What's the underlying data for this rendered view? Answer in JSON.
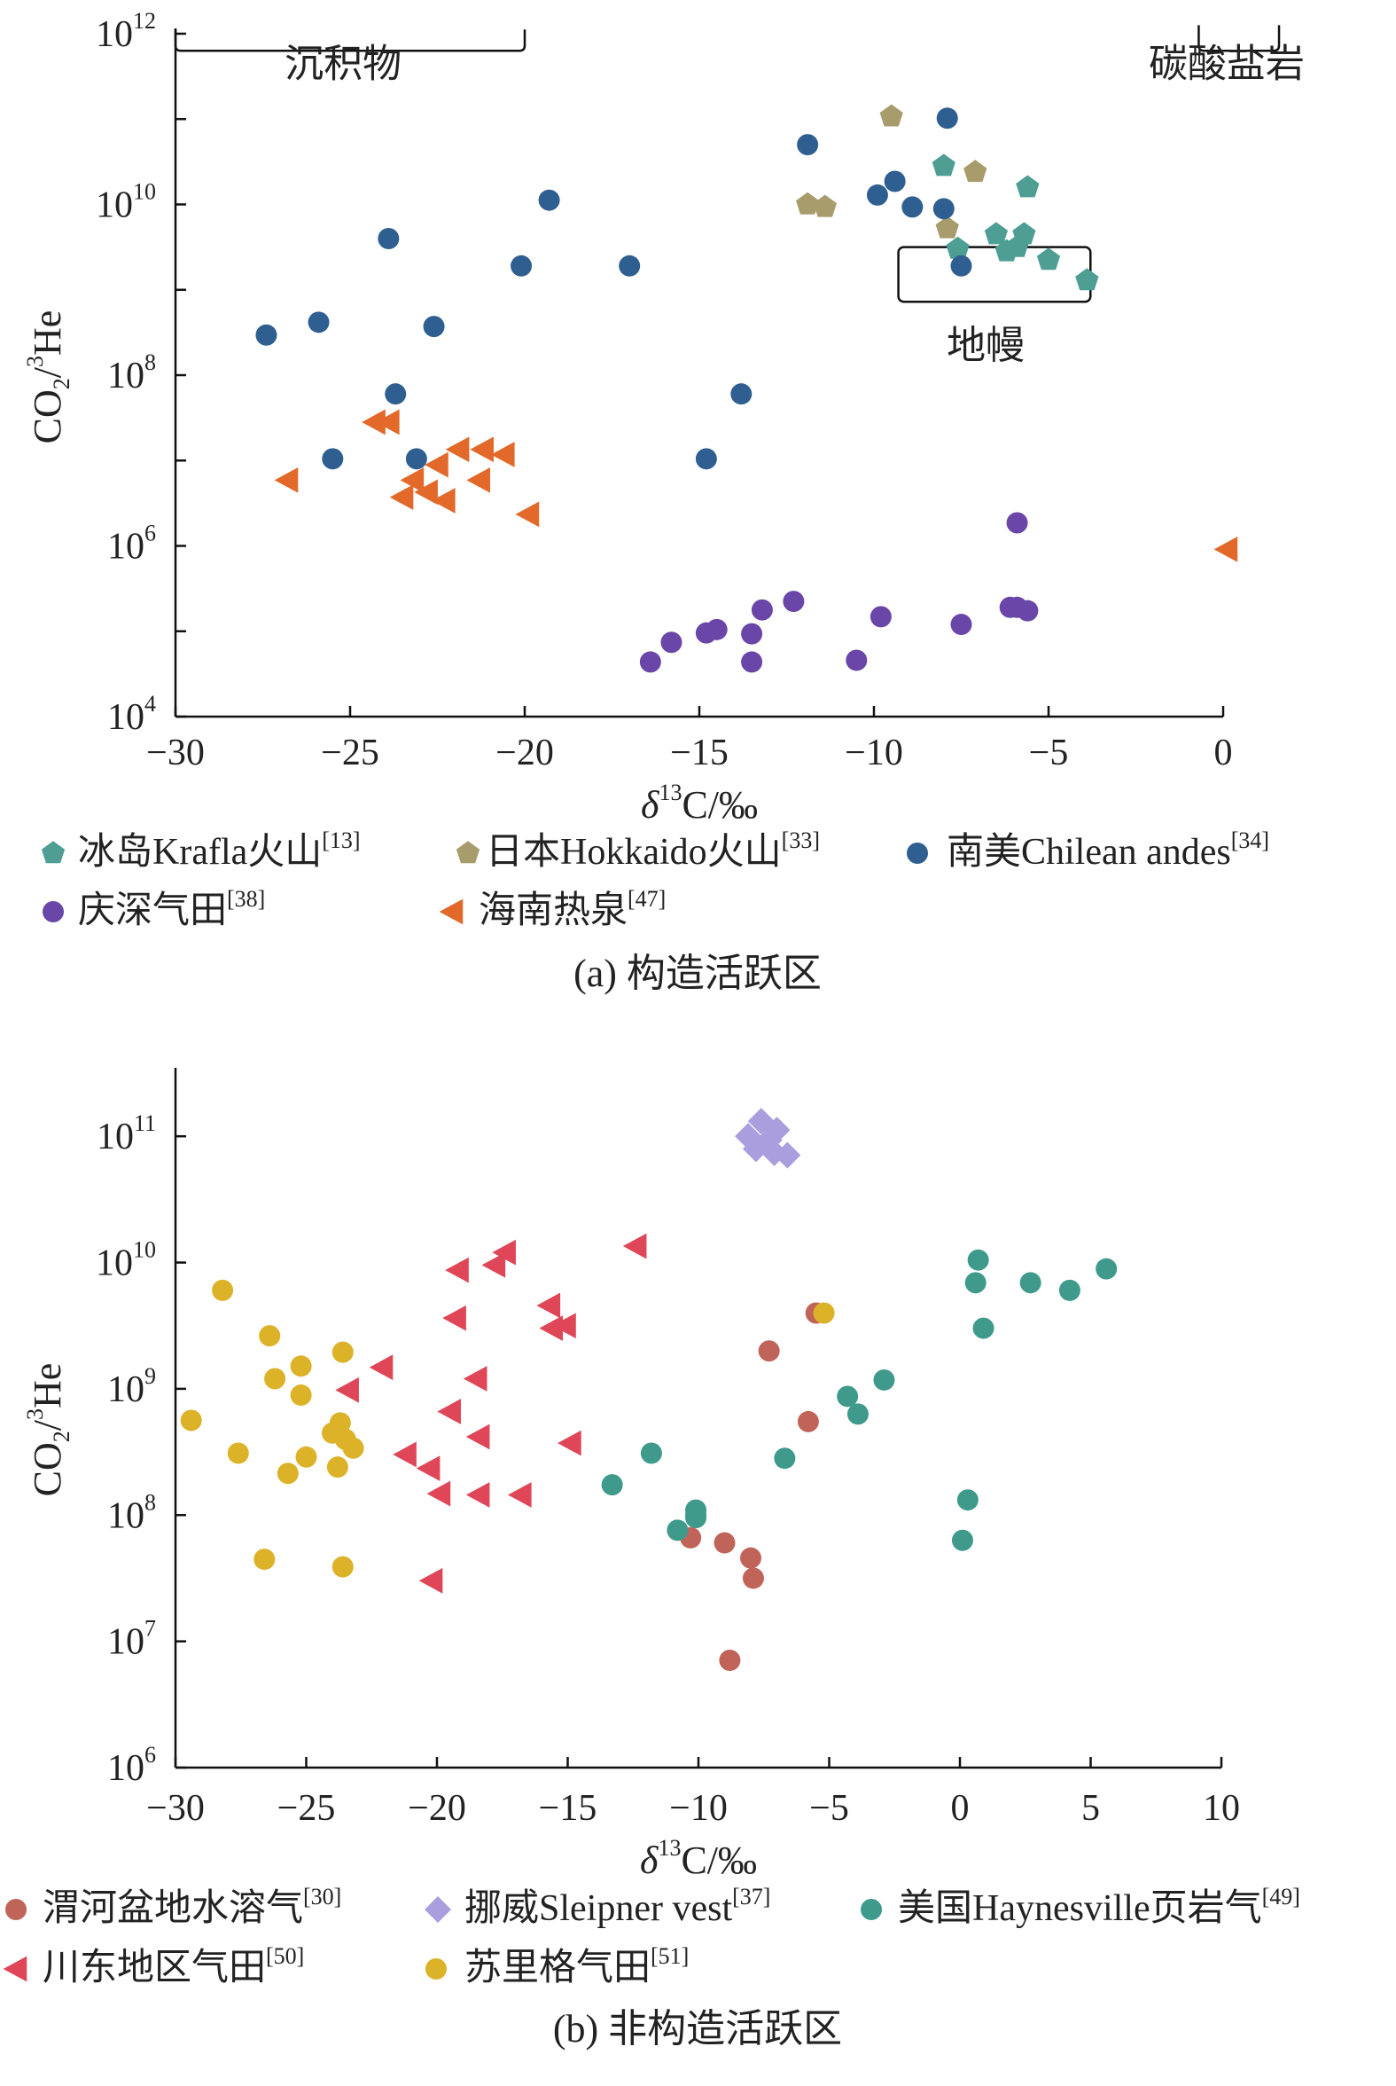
{
  "chart_data": [
    {
      "id": "panel_a",
      "type": "scatter",
      "caption": "(a) 构造活跃区",
      "xlabel_sym": "δ",
      "xlabel_sup": "13",
      "xlabel_rest": "C/‰",
      "ylabel_main": "CO",
      "ylabel_sub": "2",
      "ylabel_slash": "/",
      "ylabel_sup": "3",
      "ylabel_rest": "He",
      "xlim": [
        -30,
        0
      ],
      "ylim_exp": [
        4,
        12
      ],
      "x_ticks": [
        {
          "v": -30,
          "label": "−30"
        },
        {
          "v": -25,
          "label": "−25"
        },
        {
          "v": -20,
          "label": "−20"
        },
        {
          "v": -15,
          "label": "−15"
        },
        {
          "v": -10,
          "label": "−10"
        },
        {
          "v": -5,
          "label": "−5"
        },
        {
          "v": 0,
          "label": "0"
        }
      ],
      "y_ticks": [
        {
          "exp": 4,
          "base": "10",
          "sup": "4"
        },
        {
          "exp": 6,
          "base": "10",
          "sup": "6"
        },
        {
          "exp": 8,
          "base": "10",
          "sup": "8"
        },
        {
          "exp": 10,
          "base": "10",
          "sup": "10"
        },
        {
          "exp": 12,
          "base": "10",
          "sup": "12"
        }
      ],
      "regions": [
        {
          "label": "沉积物",
          "x": [
            -30,
            -20
          ],
          "y_exp": [
            11.8,
            12.05
          ],
          "shape": "open-top-box",
          "label_x": -25.2,
          "label_y_exp": 11.6
        },
        {
          "label": "碳酸盐岩",
          "x": [
            -0.7,
            1.6
          ],
          "y_exp": [
            11.8,
            12.1
          ],
          "shape": "open-top-box",
          "label_x": 0.1,
          "label_y_exp": 11.6
        },
        {
          "label": "地幔",
          "x": [
            -9.3,
            -3.8
          ],
          "y_exp": [
            8.86,
            9.5
          ],
          "shape": "rounded-box",
          "label_x": -6.8,
          "label_y_exp": 8.3
        }
      ],
      "series": [
        {
          "name": "冰岛Krafla火山",
          "ref": "[13]",
          "marker": "pentagon",
          "color": "#4e9e93",
          "x": [
            -8.0,
            -5.6,
            -6.5,
            -5.7,
            -7.6,
            -6.2,
            -5.9,
            -5.0,
            -3.9
          ],
          "y_exp": [
            10.45,
            10.2,
            9.65,
            9.65,
            9.48,
            9.45,
            9.5,
            9.35,
            9.11
          ]
        },
        {
          "name": "日本Hokkaido火山",
          "ref": "[33]",
          "marker": "pentagon",
          "color": "#a89c6d",
          "x": [
            -9.5,
            -7.1,
            -11.9,
            -11.4,
            -7.9
          ],
          "y_exp": [
            11.03,
            10.38,
            10.0,
            9.97,
            9.72
          ]
        },
        {
          "name": "南美Chilean andes",
          "ref": "[34]",
          "marker": "circle",
          "color": "#2f5f91",
          "x": [
            -11.9,
            -7.9,
            -9.4,
            -9.9,
            -8.9,
            -8.0,
            -7.5,
            -19.3,
            -23.9,
            -20.1,
            -17.0,
            -25.9,
            -27.4,
            -22.6,
            -23.7,
            -13.8,
            -25.5,
            -23.1,
            -14.8
          ],
          "y_exp": [
            10.7,
            11.01,
            10.27,
            10.11,
            9.97,
            9.95,
            9.28,
            10.05,
            9.6,
            9.28,
            9.28,
            8.62,
            8.47,
            8.57,
            7.78,
            7.78,
            7.02,
            7.02,
            7.02
          ]
        },
        {
          "name": "庆深气田",
          "ref": "[38]",
          "marker": "circle",
          "color": "#6a46a8",
          "x": [
            -5.9,
            -12.3,
            -9.8,
            -13.2,
            -6.1,
            -5.9,
            -5.6,
            -7.5,
            -13.5,
            -14.5,
            -14.8,
            -15.8,
            -16.4,
            -13.5,
            -10.5
          ],
          "y_exp": [
            6.27,
            5.35,
            5.17,
            5.25,
            5.28,
            5.28,
            5.24,
            5.08,
            4.97,
            5.02,
            4.98,
            4.87,
            4.64,
            4.64,
            4.66
          ]
        },
        {
          "name": "海南热泉",
          "ref": "[47]",
          "marker": "triangle-left",
          "color": "#e2692a",
          "x": [
            -24.3,
            -23.9,
            -21.9,
            -21.2,
            -20.6,
            -22.5,
            -23.2,
            -26.8,
            -21.3,
            -22.8,
            -23.5,
            -22.3,
            -19.9,
            0.1
          ],
          "y_exp": [
            7.45,
            7.45,
            7.13,
            7.13,
            7.07,
            6.95,
            6.77,
            6.77,
            6.77,
            6.63,
            6.57,
            6.53,
            6.37,
            5.96
          ]
        }
      ]
    },
    {
      "id": "panel_b",
      "type": "scatter",
      "caption": "(b) 非构造活跃区",
      "xlabel_sym": "δ",
      "xlabel_sup": "13",
      "xlabel_rest": "C/‰",
      "ylabel_main": "CO",
      "ylabel_sub": "2",
      "ylabel_slash": "/",
      "ylabel_sup": "3",
      "ylabel_rest": "He",
      "xlim": [
        -30,
        10
      ],
      "ylim_exp": [
        6,
        11.5
      ],
      "x_ticks": [
        {
          "v": -30,
          "label": "−30"
        },
        {
          "v": -25,
          "label": "−25"
        },
        {
          "v": -20,
          "label": "−20"
        },
        {
          "v": -15,
          "label": "−15"
        },
        {
          "v": -10,
          "label": "−10"
        },
        {
          "v": -5,
          "label": "−5"
        },
        {
          "v": 0,
          "label": "0"
        },
        {
          "v": 5,
          "label": "5"
        },
        {
          "v": 10,
          "label": "10"
        }
      ],
      "y_ticks": [
        {
          "exp": 6,
          "base": "10",
          "sup": "6"
        },
        {
          "exp": 7,
          "base": "10",
          "sup": "7"
        },
        {
          "exp": 8,
          "base": "10",
          "sup": "8"
        },
        {
          "exp": 9,
          "base": "10",
          "sup": "9"
        },
        {
          "exp": 10,
          "base": "10",
          "sup": "10"
        },
        {
          "exp": 11,
          "base": "10",
          "sup": "11"
        }
      ],
      "series": [
        {
          "name": "渭河盆地水溶气",
          "ref": "[30]",
          "marker": "circle",
          "color": "#c0645a",
          "x": [
            -5.5,
            -7.3,
            -5.8,
            -10.3,
            -9.0,
            -8.0,
            -7.9,
            -8.8
          ],
          "y_exp": [
            9.6,
            9.3,
            8.74,
            7.82,
            7.78,
            7.66,
            7.5,
            6.85
          ]
        },
        {
          "name": "挪威Sleipner vest",
          "ref": "[37]",
          "marker": "diamond",
          "color": "#aa9ede",
          "x": [
            -7.6,
            -7.0,
            -8.1,
            -7.3,
            -7.8,
            -6.6,
            -7.1
          ],
          "y_exp": [
            11.12,
            11.05,
            11.0,
            10.97,
            10.9,
            10.85,
            10.87
          ]
        },
        {
          "name": "美国Haynesville页岩气",
          "ref": "[49]",
          "marker": "circle",
          "color": "#3f9a8c",
          "x": [
            0.7,
            0.6,
            5.6,
            2.7,
            4.2,
            0.9,
            -2.9,
            -4.3,
            -3.9,
            -6.7,
            -11.8,
            -13.3,
            -10.1,
            -10.1,
            -10.8,
            -10.1,
            0.3,
            0.1
          ],
          "y_exp": [
            10.02,
            9.84,
            9.95,
            9.84,
            9.78,
            9.48,
            9.07,
            8.94,
            8.8,
            8.45,
            8.49,
            8.24,
            8.04,
            8.0,
            7.88,
            7.98,
            8.12,
            7.8
          ]
        },
        {
          "name": "川东地区气田",
          "ref": "[50]",
          "marker": "triangle-left",
          "color": "#df4759",
          "x": [
            -12.4,
            -17.4,
            -17.8,
            -19.2,
            -15.7,
            -19.3,
            -15.6,
            -15.1,
            -22.1,
            -18.5,
            -23.4,
            -19.5,
            -18.4,
            -14.9,
            -21.2,
            -20.3,
            -19.9,
            -18.4,
            -16.8,
            -20.2
          ],
          "y_exp": [
            10.13,
            10.08,
            9.98,
            9.94,
            9.66,
            9.56,
            9.48,
            9.5,
            9.17,
            9.08,
            8.99,
            8.82,
            8.62,
            8.57,
            8.48,
            8.37,
            8.17,
            8.16,
            8.16,
            7.48
          ]
        },
        {
          "name": "苏里格气田",
          "ref": "[51]",
          "marker": "circle",
          "color": "#dcb229",
          "x": [
            -5.2,
            -28.2,
            -26.4,
            -23.6,
            -25.2,
            -26.2,
            -25.2,
            -29.4,
            -23.7,
            -24.0,
            -23.5,
            -23.2,
            -27.6,
            -25.0,
            -25.7,
            -23.8,
            -26.6,
            -23.6
          ],
          "y_exp": [
            9.6,
            9.78,
            9.42,
            9.29,
            9.18,
            9.08,
            8.95,
            8.75,
            8.73,
            8.65,
            8.6,
            8.53,
            8.49,
            8.46,
            8.33,
            8.38,
            7.65,
            7.59
          ]
        }
      ]
    }
  ]
}
